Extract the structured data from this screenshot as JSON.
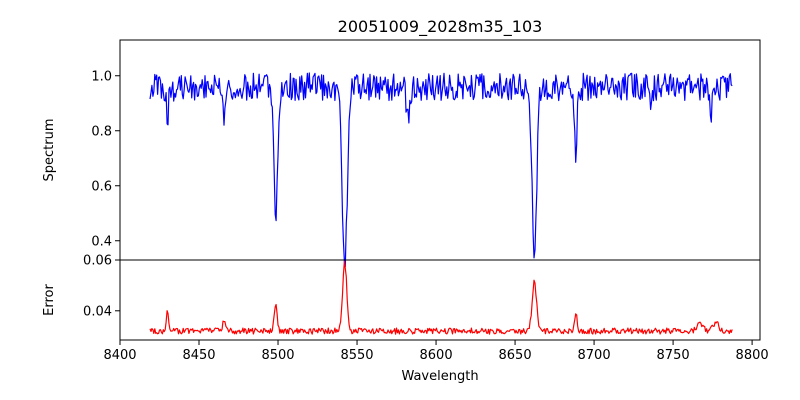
{
  "chart_data": [
    {
      "type": "line",
      "title": "20051009_2028m35_103",
      "xlabel": "",
      "ylabel": "Spectrum",
      "xlim": [
        8400,
        8805
      ],
      "ylim": [
        0.33,
        1.13
      ],
      "yticks": [
        0.4,
        0.6,
        0.8,
        1.0
      ],
      "yticklabels": [
        "0.4",
        "0.6",
        "0.8",
        "1.0"
      ],
      "series": [
        {
          "color": "#0000ff",
          "x_range": [
            8419,
            8788
          ],
          "continuum": 0.96,
          "noise_amplitude": 0.05,
          "absorption_lines": [
            {
              "center": 8430,
              "depth": 0.1,
              "width": 0.8
            },
            {
              "center": 8435,
              "depth": 0.08,
              "width": 0.8
            },
            {
              "center": 8466,
              "depth": 0.12,
              "width": 1.0
            },
            {
              "center": 8498.5,
              "depth": 0.47,
              "width": 1.2
            },
            {
              "center": 8542.2,
              "depth": 0.64,
              "width": 1.6
            },
            {
              "center": 8582,
              "depth": 0.12,
              "width": 1.0
            },
            {
              "center": 8662.2,
              "depth": 0.61,
              "width": 1.5
            },
            {
              "center": 8688.5,
              "depth": 0.25,
              "width": 0.8
            },
            {
              "center": 8736,
              "depth": 0.1,
              "width": 0.8
            },
            {
              "center": 8774,
              "depth": 0.1,
              "width": 0.8
            }
          ]
        }
      ]
    },
    {
      "type": "line",
      "title": "",
      "xlabel": "Wavelength",
      "ylabel": "Error",
      "xlim": [
        8400,
        8805
      ],
      "ylim": [
        0.0285,
        0.06
      ],
      "xticks": [
        8400,
        8450,
        8500,
        8550,
        8600,
        8650,
        8700,
        8750,
        8800
      ],
      "xticklabels": [
        "8400",
        "8450",
        "8500",
        "8550",
        "8600",
        "8650",
        "8700",
        "8750",
        "8800"
      ],
      "yticks": [
        0.04,
        0.06
      ],
      "yticklabels": [
        "0.04",
        "0.06"
      ],
      "series": [
        {
          "color": "#ff0000",
          "x_range": [
            8419,
            8788
          ],
          "baseline": 0.032,
          "noise_amplitude": 0.0012,
          "emission_peaks": [
            {
              "center": 8430,
              "height": 0.0075,
              "width": 0.8
            },
            {
              "center": 8466,
              "height": 0.0045,
              "width": 0.9
            },
            {
              "center": 8498.5,
              "height": 0.0105,
              "width": 1.0
            },
            {
              "center": 8542.2,
              "height": 0.027,
              "width": 1.3
            },
            {
              "center": 8662.2,
              "height": 0.0195,
              "width": 1.4
            },
            {
              "center": 8688.5,
              "height": 0.007,
              "width": 0.8
            },
            {
              "center": 8767,
              "height": 0.0035,
              "width": 2.0
            },
            {
              "center": 8777,
              "height": 0.003,
              "width": 2.0
            }
          ]
        }
      ]
    }
  ]
}
